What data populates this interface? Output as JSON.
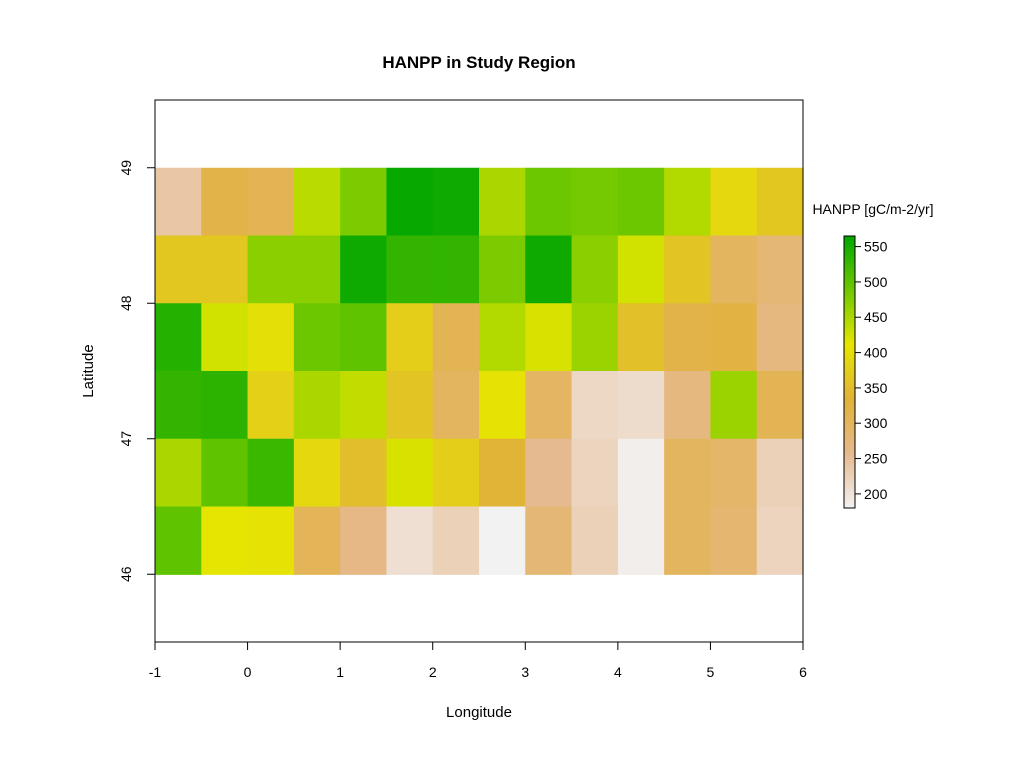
{
  "chart_data": {
    "type": "heatmap",
    "title": "HANPP in Study Region",
    "xlabel": "Longitude",
    "ylabel": "Latitude",
    "xlim": [
      -1,
      6
    ],
    "ylim": [
      45.5,
      49.5
    ],
    "xticks": [
      -1,
      0,
      1,
      2,
      3,
      4,
      5,
      6
    ],
    "yticks": [
      46,
      47,
      48,
      49
    ],
    "cell_size": 0.5,
    "x_centers": [
      -0.75,
      -0.25,
      0.25,
      0.75,
      1.25,
      1.75,
      2.25,
      2.75,
      3.25,
      3.75,
      4.25,
      4.75,
      5.25,
      5.75
    ],
    "y_centers": [
      48.75,
      48.25,
      47.75,
      47.25,
      46.75,
      46.25
    ],
    "values": [
      [
        240,
        320,
        310,
        440,
        480,
        560,
        555,
        450,
        490,
        485,
        490,
        445,
        390,
        365
      ],
      [
        365,
        365,
        470,
        470,
        555,
        530,
        530,
        480,
        555,
        470,
        425,
        360,
        300,
        280
      ],
      [
        540,
        425,
        400,
        490,
        500,
        375,
        310,
        445,
        420,
        460,
        355,
        320,
        325,
        270
      ],
      [
        530,
        535,
        380,
        450,
        435,
        360,
        300,
        405,
        295,
        215,
        210,
        270,
        460,
        310
      ],
      [
        450,
        500,
        525,
        390,
        350,
        420,
        375,
        335,
        255,
        220,
        185,
        300,
        290,
        225
      ],
      [
        500,
        410,
        405,
        305,
        265,
        205,
        225,
        180,
        280,
        225,
        185,
        300,
        285,
        220
      ]
    ],
    "colorbar": {
      "title": "HANPP [gC/m-2/yr]",
      "range": [
        180,
        565
      ],
      "ticks": [
        200,
        250,
        300,
        350,
        400,
        450,
        500,
        550
      ],
      "colors": [
        "#f2f2f2",
        "#e6b98e",
        "#e1b238",
        "#e6e600",
        "#70c800",
        "#00a600"
      ]
    },
    "grid": false,
    "legend_position": "right"
  }
}
